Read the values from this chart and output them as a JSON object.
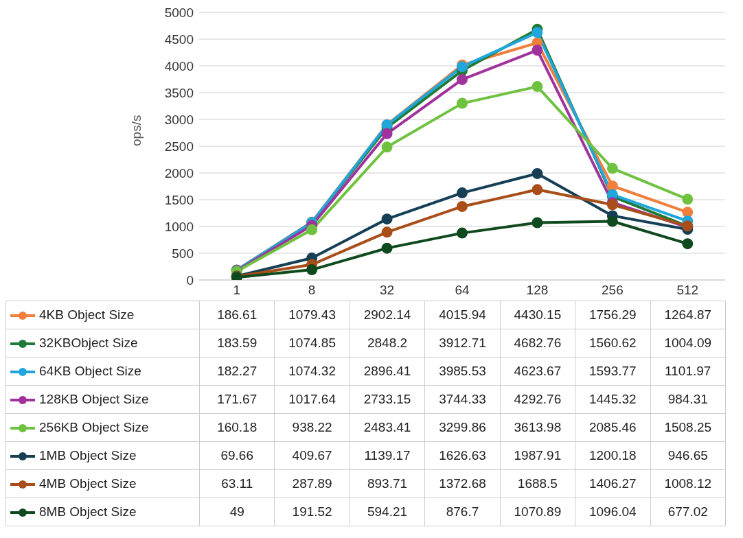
{
  "chart_data": {
    "type": "line",
    "ylabel": "ops/s",
    "categories": [
      "1",
      "8",
      "32",
      "64",
      "128",
      "256",
      "512"
    ],
    "ylim": [
      0,
      5000
    ],
    "yticks": [
      0,
      500,
      1000,
      1500,
      2000,
      2500,
      3000,
      3500,
      4000,
      4500,
      5000
    ],
    "grid": "y",
    "legend": "bottom",
    "marker": "circle",
    "line_style": "solid",
    "data_labels": true,
    "series": [
      {
        "name": "4KB Object Size",
        "color": "#f07f3c",
        "values": [
          186.61,
          1079.43,
          2902.14,
          4015.94,
          4430.15,
          1756.29,
          1264.87
        ]
      },
      {
        "name": "32KBObject Size",
        "color": "#1e7a35",
        "values": [
          183.59,
          1074.85,
          2848.2,
          3912.71,
          4682.76,
          1560.62,
          1004.09
        ]
      },
      {
        "name": "64KB Object Size",
        "color": "#21a6dc",
        "values": [
          182.27,
          1074.32,
          2896.41,
          3985.53,
          4623.67,
          1593.77,
          1101.97
        ]
      },
      {
        "name": "128KB Object Size",
        "color": "#a0329b",
        "values": [
          171.67,
          1017.64,
          2733.15,
          3744.33,
          4292.76,
          1445.32,
          984.31
        ]
      },
      {
        "name": "256KB Object Size",
        "color": "#6fc240",
        "values": [
          160.18,
          938.22,
          2483.41,
          3299.86,
          3613.98,
          2085.46,
          1508.25
        ]
      },
      {
        "name": "1MB Object Size",
        "color": "#163f56",
        "values": [
          69.66,
          409.67,
          1139.17,
          1626.63,
          1987.91,
          1200.18,
          946.65
        ]
      },
      {
        "name": "4MB Object Size",
        "color": "#a84e18",
        "values": [
          63.11,
          287.89,
          893.71,
          1372.68,
          1688.5,
          1406.27,
          1008.12
        ]
      },
      {
        "name": "8MB Object Size",
        "color": "#0f4a1e",
        "values": [
          49,
          191.52,
          594.21,
          876.7,
          1070.89,
          1096.04,
          677.02
        ]
      }
    ]
  }
}
